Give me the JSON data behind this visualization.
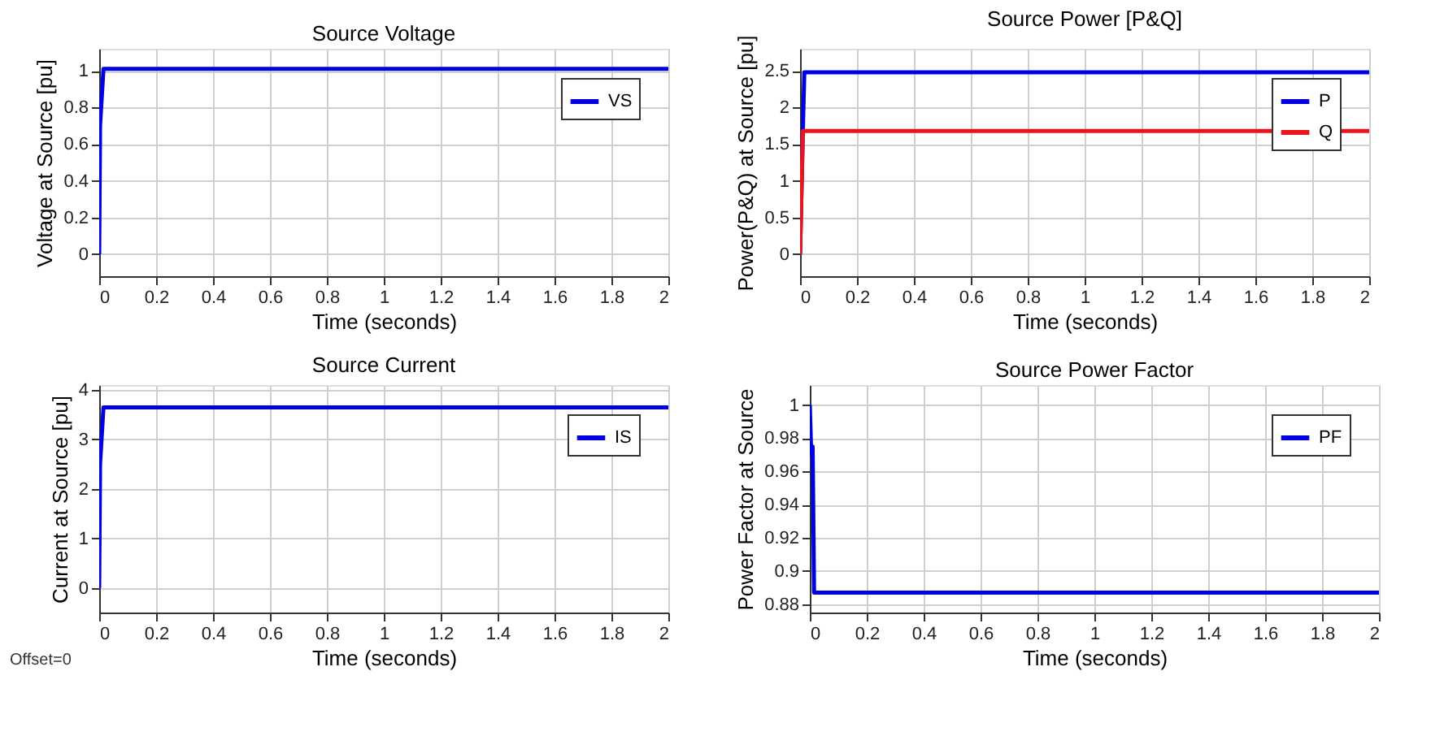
{
  "chart_data": [
    {
      "type": "line",
      "title": "Source Voltage",
      "xlabel": "Time (seconds)",
      "ylabel": "Voltage at Source [pu]",
      "xlim": [
        0,
        2
      ],
      "xticks": [
        0,
        0.2,
        0.4,
        0.6,
        0.8,
        1,
        1.2,
        1.4,
        1.6,
        1.8,
        2
      ],
      "ylim": [
        -0.12,
        1.12
      ],
      "yticks": [
        0,
        0.2,
        0.4,
        0.6,
        0.8,
        1
      ],
      "grid": true,
      "legend": "top right",
      "series": [
        {
          "name": "VS",
          "color": "#0000e0",
          "x": [
            0,
            0.003,
            0.015,
            2
          ],
          "values": [
            0,
            0.7,
            1.01,
            1.01
          ]
        }
      ]
    },
    {
      "type": "line",
      "title": "Source Power [P&Q]",
      "xlabel": "Time (seconds)",
      "ylabel": "Power(P&Q) at Source [pu]",
      "xlim": [
        0,
        2
      ],
      "xticks": [
        0,
        0.2,
        0.4,
        0.6,
        0.8,
        1,
        1.2,
        1.4,
        1.6,
        1.8,
        2
      ],
      "ylim": [
        -0.3,
        2.8
      ],
      "yticks": [
        0,
        0.5,
        1,
        1.5,
        2,
        2.5
      ],
      "grid": true,
      "legend": "top right",
      "series": [
        {
          "name": "P",
          "color": "#0000e0",
          "x": [
            0,
            0.01,
            0.015,
            2
          ],
          "values": [
            0,
            1.7,
            2.48,
            2.48
          ]
        },
        {
          "name": "Q",
          "color": "#e8161b",
          "x": [
            0,
            0.01,
            2
          ],
          "values": [
            0,
            1.68,
            1.68
          ]
        }
      ]
    },
    {
      "type": "line",
      "title": "Source Current",
      "xlabel": "Time (seconds)",
      "ylabel": "Current at Source [pu]",
      "xlim": [
        0,
        2
      ],
      "xticks": [
        0,
        0.2,
        0.4,
        0.6,
        0.8,
        1,
        1.2,
        1.4,
        1.6,
        1.8,
        2
      ],
      "ylim": [
        -0.5,
        4.1
      ],
      "yticks": [
        0,
        1,
        2,
        3,
        4
      ],
      "grid": true,
      "legend": "top right",
      "annotations": [
        "Offset=0"
      ],
      "series": [
        {
          "name": "IS",
          "color": "#0000e0",
          "x": [
            0,
            0.003,
            0.015,
            2
          ],
          "values": [
            0,
            2.5,
            3.65,
            3.65
          ]
        }
      ]
    },
    {
      "type": "line",
      "title": "Source Power Factor",
      "xlabel": "Time (seconds)",
      "ylabel": "Power Factor at Source",
      "xlim": [
        0,
        2
      ],
      "xticks": [
        0,
        0.2,
        0.4,
        0.6,
        0.8,
        1,
        1.2,
        1.4,
        1.6,
        1.8,
        2
      ],
      "ylim": [
        0.875,
        1.012
      ],
      "yticks": [
        0.88,
        0.9,
        0.92,
        0.94,
        0.96,
        0.98,
        1
      ],
      "grid": true,
      "legend": "top right",
      "series": [
        {
          "name": "PF",
          "color": "#0000e0",
          "x": [
            0,
            0.005,
            0.01,
            0.015,
            2
          ],
          "values": [
            1,
            0.97,
            0.975,
            0.887,
            0.887
          ]
        }
      ]
    }
  ]
}
